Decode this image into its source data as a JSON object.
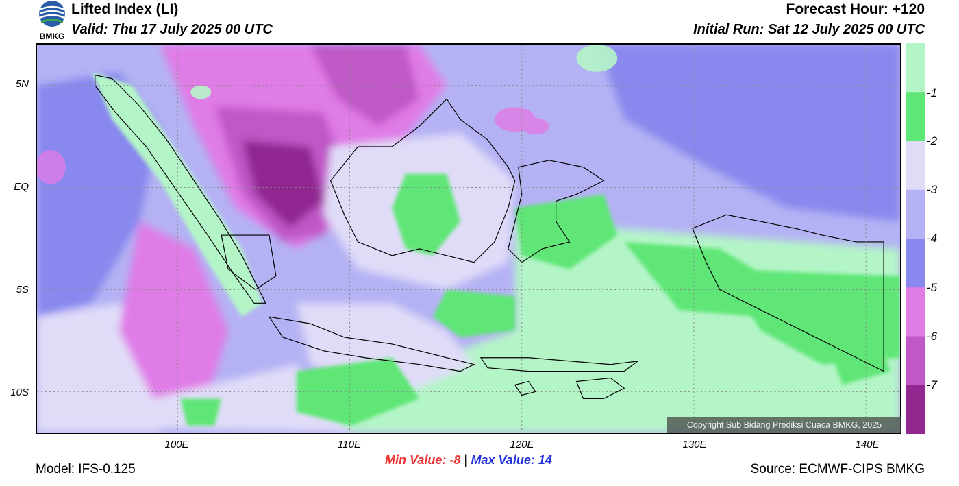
{
  "header": {
    "title": "Lifted Index (LI)",
    "valid": "Valid: Thu 17 July 2025 00 UTC",
    "forecast_hour": "Forecast Hour: +120",
    "initial_run": "Initial Run: Sat 12 July 2025 00 UTC",
    "logo_text": "BMKG"
  },
  "axes": {
    "y_ticks": [
      "5N",
      "EQ",
      "5S",
      "10S"
    ],
    "x_ticks": [
      "100E",
      "110E",
      "120E",
      "130E",
      "140E"
    ]
  },
  "legend": {
    "labels": [
      "-1",
      "-2",
      "-3",
      "-4",
      "-5",
      "-6",
      "-7"
    ],
    "colors": [
      "#b4f5c8",
      "#5ee676",
      "#e0dcf8",
      "#b4b2f4",
      "#8888ee",
      "#e07ce6",
      "#c058c8",
      "#902890"
    ]
  },
  "stats": {
    "min_label": "Min Value:",
    "min_value": "-8",
    "separator": "|",
    "max_label": "Max Value:",
    "max_value": "14"
  },
  "footer": {
    "model": "Model: IFS-0.125",
    "source": "Source: ECMWF-CIPS BMKG",
    "copyright": "Copyright Sub Bidang Prediksi Cuaca BMKG, 2025"
  }
}
